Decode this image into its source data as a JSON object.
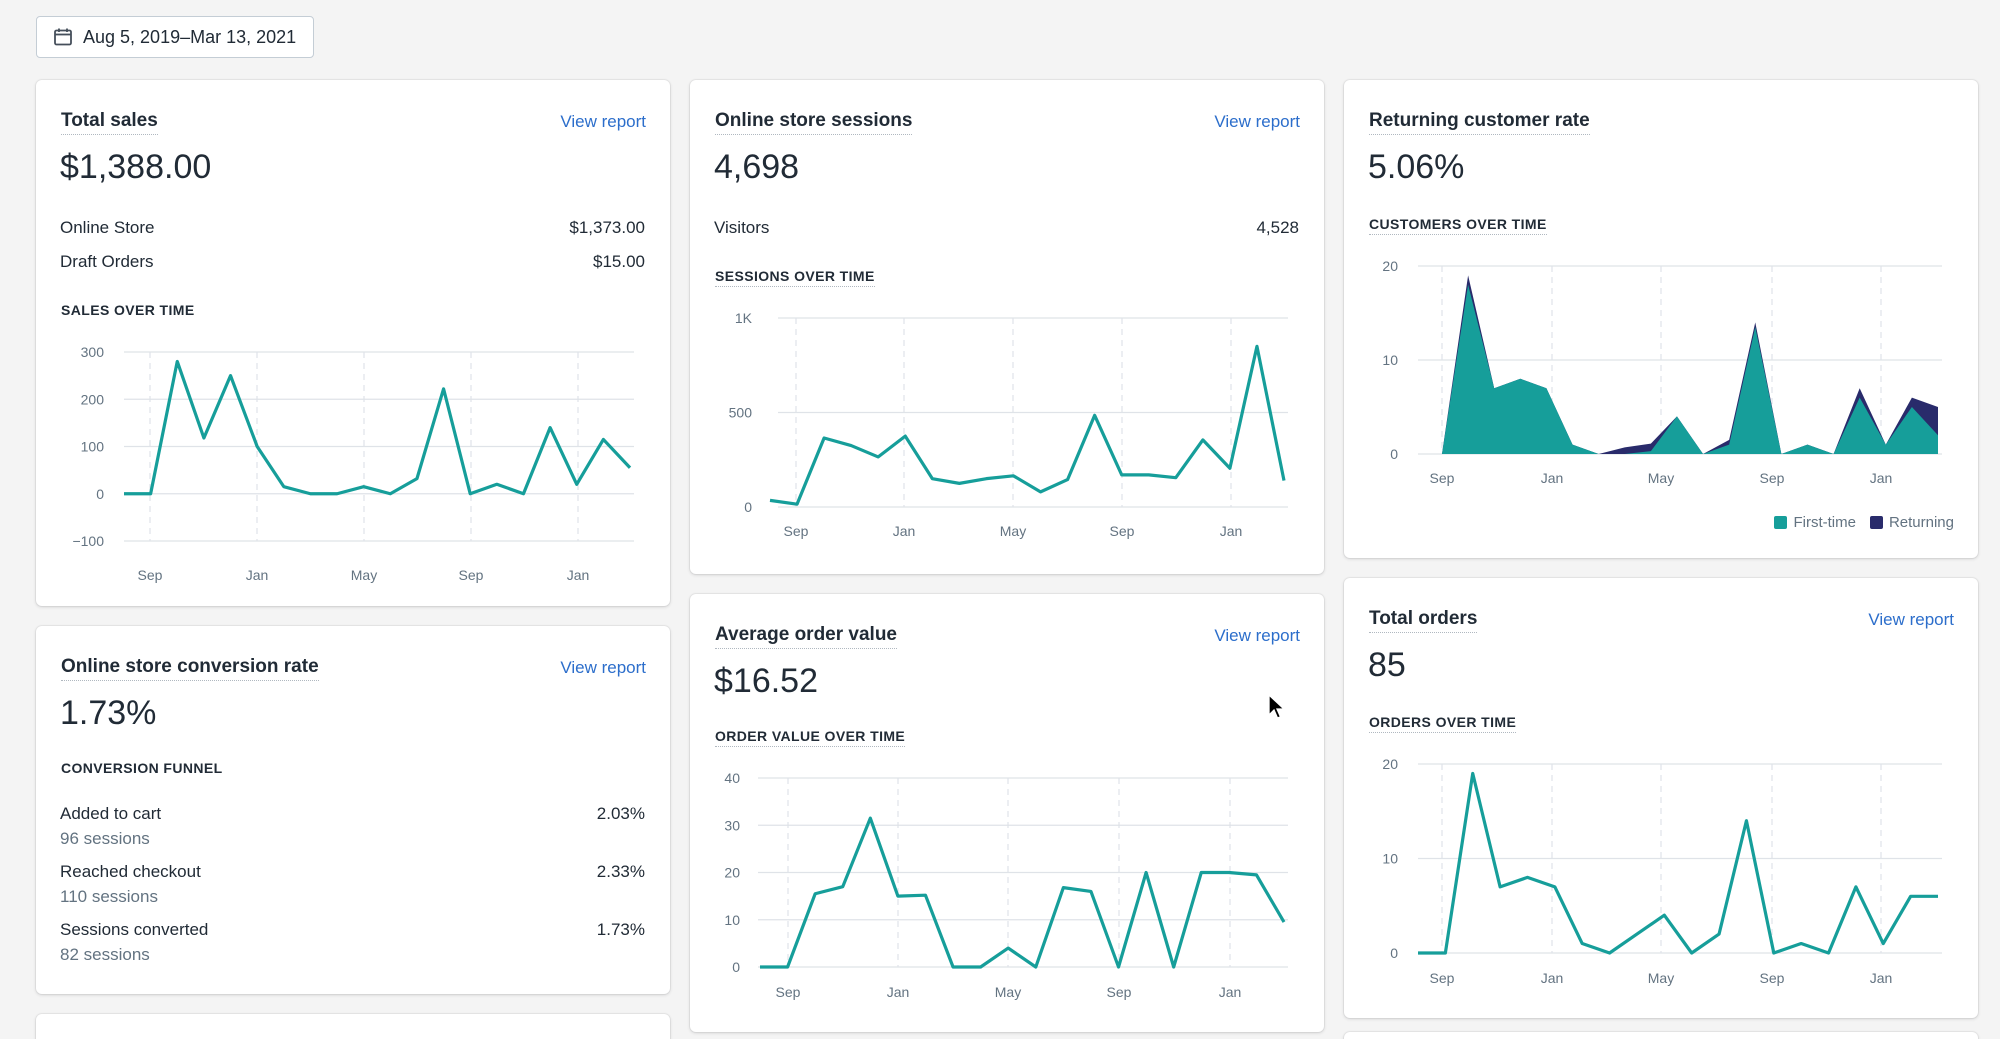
{
  "date_range": {
    "label": "Aug 5, 2019–Mar 13, 2021",
    "icon": "calendar-icon"
  },
  "colors": {
    "teal": "#169e9a",
    "navy": "#292b6b",
    "link": "#2c6ecb"
  },
  "view_report_label": "View report",
  "total_sales": {
    "title": "Total sales",
    "value": "$1,388.00",
    "rows": [
      {
        "label": "Online Store",
        "value": "$1,373.00"
      },
      {
        "label": "Draft Orders",
        "value": "$15.00"
      }
    ],
    "chart_label": "SALES OVER TIME"
  },
  "sessions": {
    "title": "Online store sessions",
    "value": "4,698",
    "rows": [
      {
        "label": "Visitors",
        "value": "4,528"
      }
    ],
    "chart_label": "SESSIONS OVER TIME"
  },
  "returning": {
    "title": "Returning customer rate",
    "value": "5.06%",
    "chart_label": "CUSTOMERS OVER TIME",
    "legend": [
      {
        "label": "First-time",
        "color": "#169e9a"
      },
      {
        "label": "Returning",
        "color": "#292b6b"
      }
    ]
  },
  "conversion": {
    "title": "Online store conversion rate",
    "value": "1.73%",
    "funnel_label": "CONVERSION FUNNEL",
    "steps": [
      {
        "label": "Added to cart",
        "sessions": "96 sessions",
        "value": "2.03%"
      },
      {
        "label": "Reached checkout",
        "sessions": "110 sessions",
        "value": "2.33%"
      },
      {
        "label": "Sessions converted",
        "sessions": "82 sessions",
        "value": "1.73%"
      }
    ]
  },
  "aov": {
    "title": "Average order value",
    "value": "$16.52",
    "chart_label": "ORDER VALUE OVER TIME"
  },
  "orders": {
    "title": "Total orders",
    "value": "85",
    "chart_label": "ORDERS OVER TIME"
  },
  "chart_data": [
    {
      "id": "sales",
      "type": "line",
      "x_labels": [
        "Sep",
        "Jan",
        "May",
        "Sep",
        "Jan"
      ],
      "yticks": [
        300,
        200,
        100,
        0,
        -100
      ],
      "ytick_labels": [
        "300",
        "200",
        "100",
        "0",
        "−100"
      ],
      "ylim": [
        -100,
        300
      ],
      "series": [
        {
          "values": [
            0,
            0,
            280,
            118,
            250,
            100,
            15,
            0,
            0,
            15,
            0,
            32,
            222,
            0,
            20,
            0,
            140,
            20,
            115,
            55
          ]
        }
      ]
    },
    {
      "id": "sessions",
      "type": "line",
      "x_labels": [
        "Sep",
        "Jan",
        "May",
        "Sep",
        "Jan"
      ],
      "yticks": [
        1000,
        500,
        0
      ],
      "ytick_labels": [
        "1K",
        "500",
        "0"
      ],
      "ylim": [
        0,
        1000
      ],
      "series": [
        {
          "values": [
            35,
            15,
            365,
            325,
            265,
            375,
            150,
            125,
            150,
            165,
            80,
            145,
            485,
            170,
            170,
            155,
            355,
            205,
            850,
            140
          ]
        }
      ]
    },
    {
      "id": "customers",
      "type": "area",
      "x_labels": [
        "Sep",
        "Jan",
        "May",
        "Sep",
        "Jan"
      ],
      "yticks": [
        20,
        10,
        0
      ],
      "ytick_labels": [
        "20",
        "10",
        "0"
      ],
      "ylim": [
        0,
        20
      ],
      "grid": true,
      "legend_position": "bottom-right",
      "series": [
        {
          "name": "First-time",
          "values": [
            0,
            18,
            7,
            8,
            7,
            1,
            0,
            0,
            0.3,
            4,
            0,
            1,
            13.5,
            0,
            1,
            0,
            6,
            1,
            5,
            2
          ]
        },
        {
          "name": "Returning",
          "values": [
            0,
            1,
            0,
            0,
            0,
            0,
            0,
            0.7,
            0.8,
            0,
            0,
            0.5,
            0.5,
            0,
            0,
            0,
            1,
            0,
            1,
            3
          ]
        }
      ]
    },
    {
      "id": "order_value",
      "type": "line",
      "x_labels": [
        "Sep",
        "Jan",
        "May",
        "Sep",
        "Jan"
      ],
      "yticks": [
        40,
        30,
        20,
        10,
        0
      ],
      "ytick_labels": [
        "40",
        "30",
        "20",
        "10",
        "0"
      ],
      "ylim": [
        0,
        40
      ],
      "series": [
        {
          "values": [
            0,
            0,
            15.5,
            17,
            31.5,
            15,
            15.2,
            0,
            0,
            4,
            0,
            16.8,
            16,
            0,
            20,
            0,
            20,
            20,
            19.5,
            9.5
          ]
        }
      ]
    },
    {
      "id": "orders",
      "type": "line",
      "x_labels": [
        "Sep",
        "Jan",
        "May",
        "Sep",
        "Jan"
      ],
      "yticks": [
        20,
        10,
        0
      ],
      "ytick_labels": [
        "20",
        "10",
        "0"
      ],
      "ylim": [
        0,
        20
      ],
      "series": [
        {
          "values": [
            0,
            0,
            19,
            7,
            8,
            7,
            1,
            0,
            2,
            4,
            0,
            2,
            14,
            0,
            1,
            0,
            7,
            1,
            6,
            6
          ]
        }
      ]
    }
  ]
}
